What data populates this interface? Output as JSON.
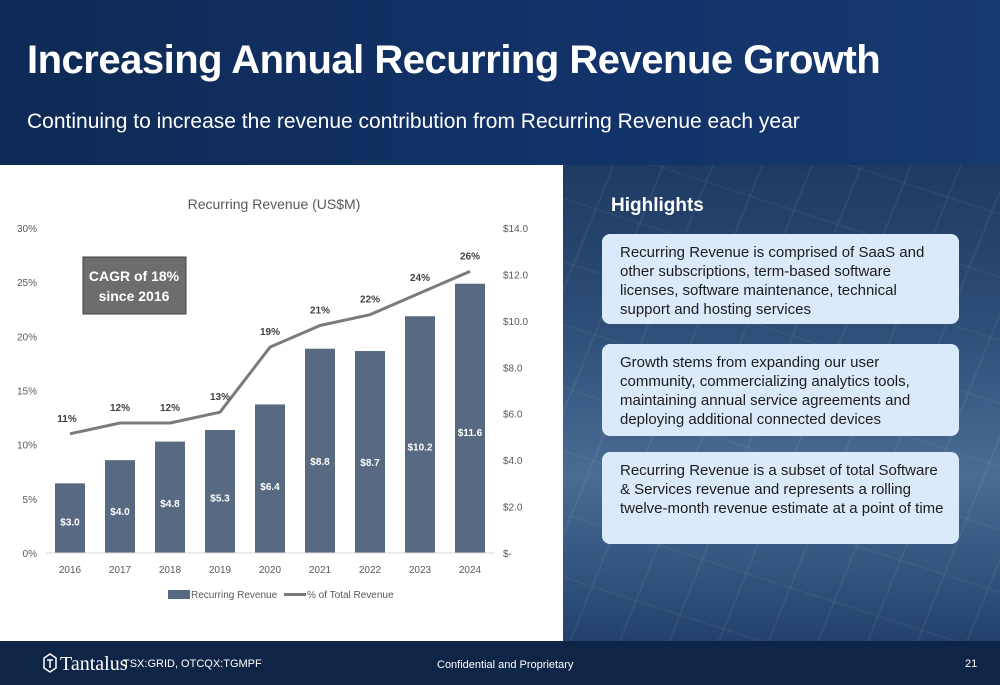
{
  "header": {
    "title": "Increasing Annual Recurring Revenue Growth",
    "subtitle": "Continuing to increase the revenue contribution from Recurring Revenue each year"
  },
  "chart_data": {
    "type": "bar",
    "title": "Recurring Revenue (US$M)",
    "categories": [
      "2016",
      "2017",
      "2018",
      "2019",
      "2020",
      "2021",
      "2022",
      "2023",
      "2024"
    ],
    "series": [
      {
        "name": "Recurring Revenue",
        "type": "bar",
        "axis": "right",
        "values": [
          3.0,
          4.0,
          4.8,
          5.3,
          6.4,
          8.8,
          8.7,
          10.2,
          11.6
        ],
        "labels": [
          "$3.0",
          "$4.0",
          "$4.8",
          "$5.3",
          "$6.4",
          "$8.8",
          "$8.7",
          "$10.2",
          "$11.6"
        ],
        "color": "#586a82"
      },
      {
        "name": "% of Total Revenue",
        "type": "line",
        "axis": "left",
        "values": [
          11,
          12,
          12,
          13,
          19,
          21,
          22,
          24,
          26
        ],
        "labels": [
          "11%",
          "12%",
          "12%",
          "13%",
          "19%",
          "21%",
          "22%",
          "24%",
          "26%"
        ],
        "color": "#7b7b7b"
      }
    ],
    "left_axis": {
      "ylim": [
        0,
        30
      ],
      "ticks": [
        "0%",
        "5%",
        "10%",
        "15%",
        "20%",
        "25%",
        "30%"
      ]
    },
    "right_axis": {
      "ylim": [
        0,
        14
      ],
      "ticks": [
        "$-",
        "$2.0",
        "$4.0",
        "$6.0",
        "$8.0",
        "$10.0",
        "$12.0",
        "$14.0"
      ]
    },
    "grid": false,
    "legend": "bottom",
    "annotation": "CAGR of 18% since 2016"
  },
  "highlights": {
    "title": "Highlights",
    "items": [
      "Recurring Revenue is comprised of SaaS and other subscriptions, term-based software licenses, software maintenance, technical support and hosting services",
      "Growth stems from expanding our user community, commercializing analytics tools, maintaining annual service agreements and deploying additional connected devices",
      "Recurring Revenue is a subset of total Software & Services revenue and represents a rolling twelve-month revenue estimate at a point of time"
    ]
  },
  "footer": {
    "logo_text": "Tantalus",
    "ticker": "TSX:GRID, OTCQX:TGMPF",
    "confidential": "Confidential and Proprietary",
    "page_number": "21"
  },
  "colors": {
    "navy": "#0f2547",
    "bar": "#586a82",
    "line": "#7b7b7b",
    "card": "#dbeafa",
    "annotation_box": "#6d6d6d"
  }
}
